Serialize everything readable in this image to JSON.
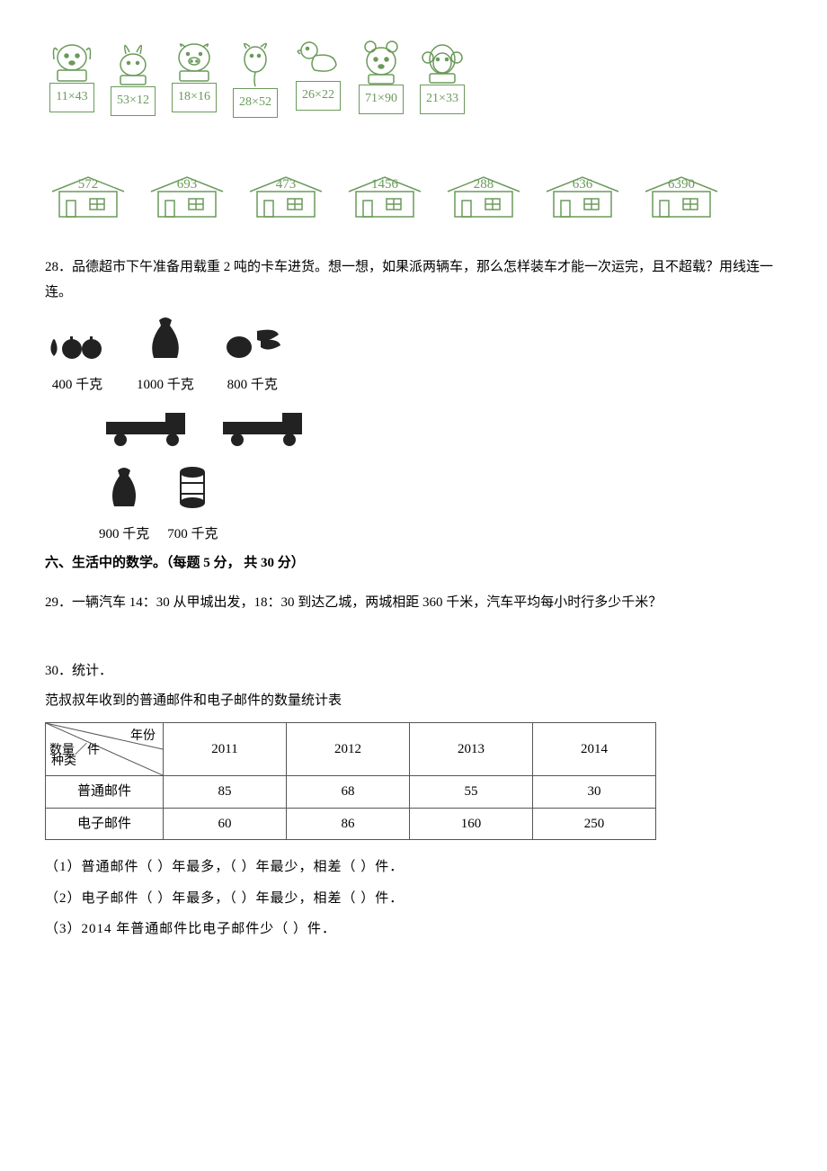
{
  "matching": {
    "animal_color": "#6a9a5a",
    "animals": [
      {
        "name": "dog",
        "eq": "11×43"
      },
      {
        "name": "rabbit",
        "eq": "53×12"
      },
      {
        "name": "pig",
        "eq": "18×16"
      },
      {
        "name": "goat",
        "eq": "28×52"
      },
      {
        "name": "duck",
        "eq": "26×22"
      },
      {
        "name": "bear",
        "eq": "71×90"
      },
      {
        "name": "monkey",
        "eq": "21×33"
      }
    ],
    "houses": [
      "572",
      "693",
      "473",
      "1456",
      "288",
      "636",
      "6390"
    ]
  },
  "q28": {
    "num": "28．",
    "text": "品德超市下午准备用载重 2 吨的卡车进货。想一想，如果派两辆车，那么怎样装车才能一次运完，且不超载？用线连一连。",
    "goods_top": [
      {
        "name": "fruit",
        "label": "400 千克"
      },
      {
        "name": "sack",
        "label": "1000 千克"
      },
      {
        "name": "veg",
        "label": "800 千克"
      }
    ],
    "goods_bottom": [
      {
        "name": "sack2",
        "label": "900 千克"
      },
      {
        "name": "barrel",
        "label": "700 千克"
      }
    ]
  },
  "section6": {
    "title": "六、生活中的数学。（每题 5 分，  共 30 分）"
  },
  "q29": {
    "num": "29．",
    "text": "一辆汽车 14：30 从甲城出发，18：30 到达乙城，两城相距 360 千米，汽车平均每小时行多少千米？"
  },
  "q30": {
    "num": "30．",
    "title": "统计．",
    "caption": "范叔叔年收到的普通邮件和电子邮件的数量统计表",
    "header_diag": {
      "top": "年份",
      "mid": "数量／件",
      "bottom": "种类"
    },
    "years": [
      "2011",
      "2012",
      "2013",
      "2014"
    ],
    "rows": [
      {
        "label": "普通邮件",
        "vals": [
          "85",
          "68",
          "55",
          "30"
        ]
      },
      {
        "label": "电子邮件",
        "vals": [
          "60",
          "86",
          "160",
          "250"
        ]
      }
    ],
    "subs": [
      "（1）普通邮件（    ）年最多，（    ）年最少，相差（    ）件．",
      "（2）电子邮件（    ）年最多，（    ）年最少，相差（    ）件．",
      "（3）2014 年普通邮件比电子邮件少（    ）件．"
    ]
  }
}
